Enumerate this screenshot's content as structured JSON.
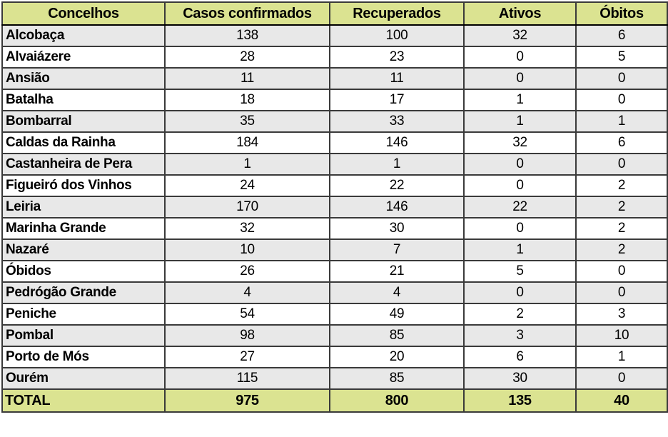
{
  "colors": {
    "header_bg": "#dbe391",
    "row_alt_bg": "#e8e8e8",
    "row_bg": "#ffffff",
    "border_color": "#3a3a3a",
    "outer_border_color": "#000000",
    "text_color": "#000000"
  },
  "chart_data": {
    "type": "table",
    "columns": [
      "Concelhos",
      "Casos confirmados",
      "Recuperados",
      "Ativos",
      "Óbitos"
    ],
    "rows": [
      {
        "name": "Alcobaça",
        "values": [
          138,
          100,
          32,
          6
        ]
      },
      {
        "name": "Alvaiázere",
        "values": [
          28,
          23,
          0,
          5
        ]
      },
      {
        "name": "Ansião",
        "values": [
          11,
          11,
          0,
          0
        ]
      },
      {
        "name": "Batalha",
        "values": [
          18,
          17,
          1,
          0
        ]
      },
      {
        "name": "Bombarral",
        "values": [
          35,
          33,
          1,
          1
        ]
      },
      {
        "name": "Caldas da Rainha",
        "values": [
          184,
          146,
          32,
          6
        ]
      },
      {
        "name": "Castanheira de Pera",
        "values": [
          1,
          1,
          0,
          0
        ]
      },
      {
        "name": "Figueiró dos Vinhos",
        "values": [
          24,
          22,
          0,
          2
        ]
      },
      {
        "name": "Leiria",
        "values": [
          170,
          146,
          22,
          2
        ]
      },
      {
        "name": "Marinha Grande",
        "values": [
          32,
          30,
          0,
          2
        ]
      },
      {
        "name": "Nazaré",
        "values": [
          10,
          7,
          1,
          2
        ]
      },
      {
        "name": "Óbidos",
        "values": [
          26,
          21,
          5,
          0
        ]
      },
      {
        "name": "Pedrógão Grande",
        "values": [
          4,
          4,
          0,
          0
        ]
      },
      {
        "name": "Peniche",
        "values": [
          54,
          49,
          2,
          3
        ]
      },
      {
        "name": "Pombal",
        "values": [
          98,
          85,
          3,
          10
        ]
      },
      {
        "name": "Porto de Mós",
        "values": [
          27,
          20,
          6,
          1
        ]
      },
      {
        "name": "Ourém",
        "values": [
          115,
          85,
          30,
          0
        ]
      }
    ],
    "total": {
      "label": "TOTAL",
      "values": [
        975,
        800,
        135,
        40
      ]
    }
  }
}
